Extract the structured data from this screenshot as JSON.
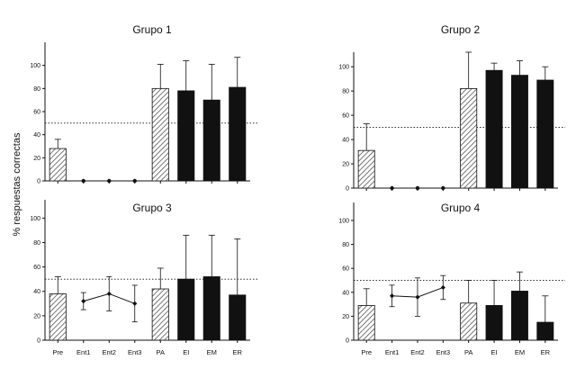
{
  "colors": {
    "bar": "#111111",
    "hatch": "#555555",
    "background": "#ffffff"
  },
  "figure": {
    "ylabel": "% respuestas correctas"
  },
  "chart_data": [
    {
      "type": "bar",
      "title": "Grupo 1",
      "categories": [
        "Pre",
        "Ent1",
        "Ent2",
        "Ent3",
        "PA",
        "EI",
        "EM",
        "ER"
      ],
      "series": [
        {
          "values": [
            28,
            null,
            null,
            null,
            80,
            78,
            70,
            81
          ],
          "errors": [
            8,
            null,
            null,
            null,
            21,
            26,
            31,
            26
          ]
        },
        {
          "values": [
            null,
            0,
            0,
            0,
            null,
            null,
            null,
            null
          ]
        }
      ],
      "styles": [
        "hatched",
        "point",
        "point",
        "point",
        "hatched",
        "solid",
        "solid",
        "solid"
      ],
      "reference_line": 50,
      "ylim": [
        0,
        120
      ],
      "yticks": [
        0,
        20,
        40,
        60,
        80,
        100
      ],
      "xlabel": "",
      "ylabel": "% respuestas correctas"
    },
    {
      "type": "bar",
      "title": "Grupo 2",
      "categories": [
        "Pre",
        "Ent1",
        "Ent2",
        "Ent3",
        "PA",
        "EI",
        "EM",
        "ER"
      ],
      "series": [
        {
          "values": [
            31,
            null,
            null,
            null,
            82,
            97,
            93,
            89
          ],
          "errors": [
            22,
            null,
            null,
            null,
            30,
            6,
            12,
            11
          ]
        },
        {
          "values": [
            null,
            0,
            0,
            0,
            null,
            null,
            null,
            null
          ]
        }
      ],
      "styles": [
        "hatched",
        "point",
        "point",
        "point",
        "hatched",
        "solid",
        "solid",
        "solid"
      ],
      "reference_line": 50,
      "ylim": [
        0,
        112
      ],
      "yticks": [
        0,
        20,
        40,
        60,
        80,
        100
      ],
      "xlabel": "",
      "ylabel": ""
    },
    {
      "type": "bar",
      "title": "Grupo 3",
      "categories": [
        "Pre",
        "Ent1",
        "Ent2",
        "Ent3",
        "PA",
        "EI",
        "EM",
        "ER"
      ],
      "series": [
        {
          "values": [
            38,
            null,
            null,
            null,
            42,
            50,
            52,
            37
          ],
          "errors": [
            14,
            null,
            null,
            null,
            17,
            36,
            34,
            46
          ]
        },
        {
          "values": [
            null,
            32,
            38,
            30,
            null,
            null,
            null,
            null
          ],
          "errors": [
            null,
            7,
            14,
            15,
            null,
            null,
            null,
            null
          ]
        }
      ],
      "styles": [
        "hatched",
        "point",
        "point",
        "point",
        "hatched",
        "solid",
        "solid",
        "solid"
      ],
      "reference_line": 50,
      "ylim": [
        0,
        115
      ],
      "yticks": [
        0,
        20,
        40,
        60,
        80,
        100
      ],
      "xlabel": "",
      "ylabel": ""
    },
    {
      "type": "bar",
      "title": "Grupo 4",
      "categories": [
        "Pre",
        "Ent1",
        "Ent2",
        "Ent3",
        "PA",
        "EI",
        "EM",
        "ER"
      ],
      "series": [
        {
          "values": [
            29,
            null,
            null,
            null,
            31,
            29,
            41,
            15
          ],
          "errors": [
            14,
            null,
            null,
            null,
            19,
            21,
            16,
            22
          ]
        },
        {
          "values": [
            null,
            37,
            36,
            44,
            null,
            null,
            null,
            null
          ],
          "errors": [
            null,
            9,
            16,
            10,
            null,
            null,
            null,
            null
          ]
        }
      ],
      "styles": [
        "hatched",
        "point",
        "point",
        "point",
        "hatched",
        "solid",
        "solid",
        "solid"
      ],
      "reference_line": 50,
      "ylim": [
        0,
        115
      ],
      "yticks": [
        0,
        20,
        40,
        60,
        80,
        100
      ],
      "xlabel": "",
      "ylabel": ""
    }
  ]
}
